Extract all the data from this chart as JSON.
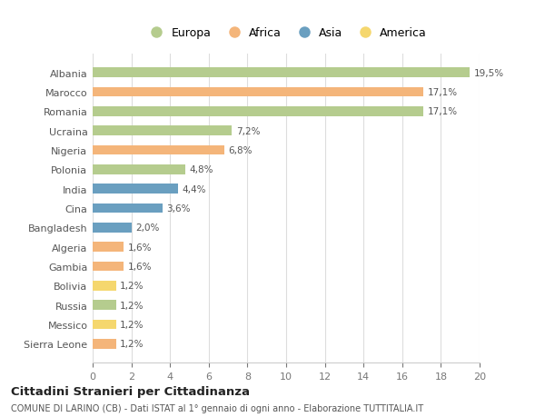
{
  "countries": [
    "Albania",
    "Marocco",
    "Romania",
    "Ucraina",
    "Nigeria",
    "Polonia",
    "India",
    "Cina",
    "Bangladesh",
    "Algeria",
    "Gambia",
    "Bolivia",
    "Russia",
    "Messico",
    "Sierra Leone"
  ],
  "values": [
    19.5,
    17.1,
    17.1,
    7.2,
    6.8,
    4.8,
    4.4,
    3.6,
    2.0,
    1.6,
    1.6,
    1.2,
    1.2,
    1.2,
    1.2
  ],
  "labels": [
    "19,5%",
    "17,1%",
    "17,1%",
    "7,2%",
    "6,8%",
    "4,8%",
    "4,4%",
    "3,6%",
    "2,0%",
    "1,6%",
    "1,6%",
    "1,2%",
    "1,2%",
    "1,2%",
    "1,2%"
  ],
  "continents": [
    "Europa",
    "Africa",
    "Europa",
    "Europa",
    "Africa",
    "Europa",
    "Asia",
    "Asia",
    "Asia",
    "Africa",
    "Africa",
    "America",
    "Europa",
    "America",
    "Africa"
  ],
  "colors": {
    "Europa": "#b5cc8e",
    "Africa": "#f4b57a",
    "Asia": "#6a9fc0",
    "America": "#f5d76e"
  },
  "legend_order": [
    "Europa",
    "Africa",
    "Asia",
    "America"
  ],
  "xlim": [
    0,
    20
  ],
  "xticks": [
    0,
    2,
    4,
    6,
    8,
    10,
    12,
    14,
    16,
    18,
    20
  ],
  "title": "Cittadini Stranieri per Cittadinanza",
  "subtitle": "COMUNE DI LARINO (CB) - Dati ISTAT al 1° gennaio di ogni anno - Elaborazione TUTTITALIA.IT",
  "bg_color": "#ffffff",
  "grid_color": "#dddddd"
}
